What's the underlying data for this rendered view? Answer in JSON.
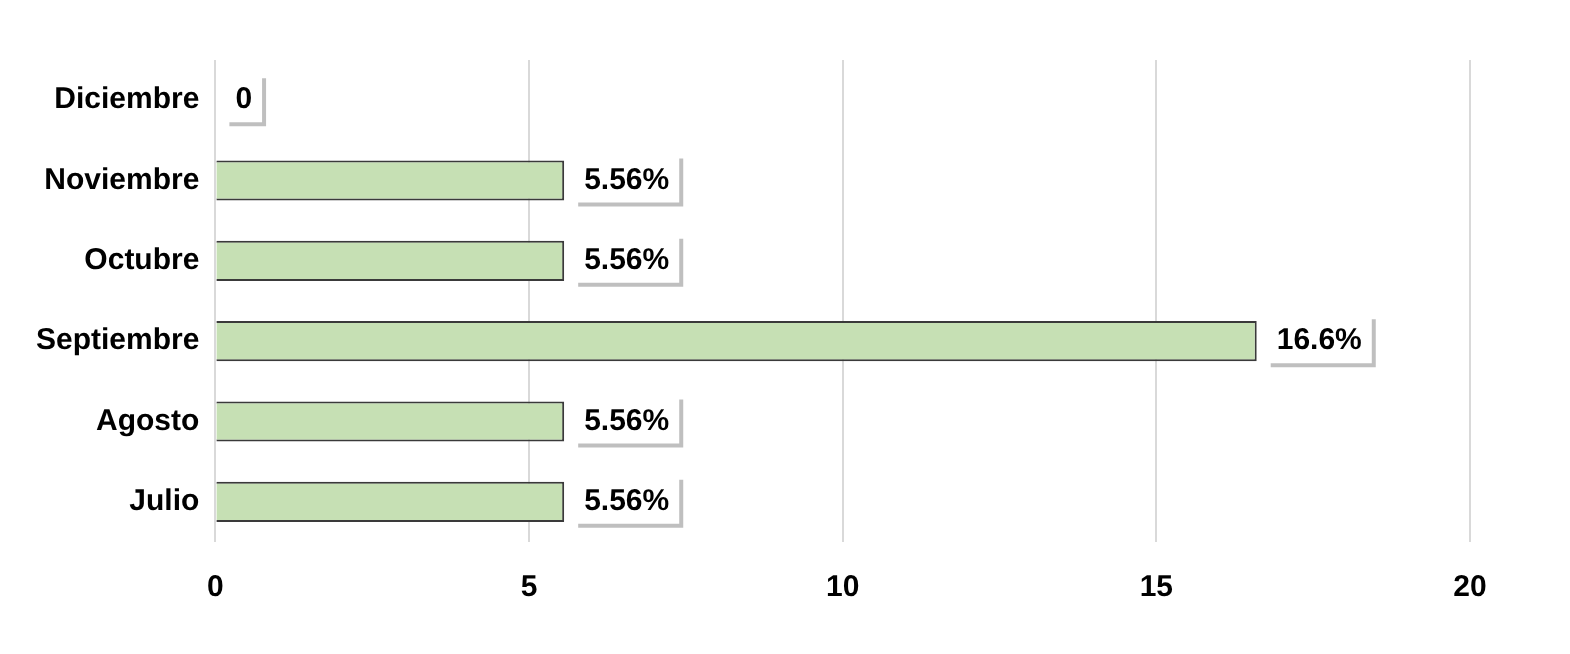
{
  "chart_data": {
    "type": "bar",
    "orientation": "horizontal",
    "categories": [
      "Diciembre",
      "Noviembre",
      "Octubre",
      "Septiembre",
      "Agosto",
      "Julio"
    ],
    "values": [
      0,
      5.56,
      5.56,
      16.6,
      5.56,
      5.56
    ],
    "value_labels": [
      "0",
      "5.56%",
      "5.56%",
      "16.6%",
      "5.56%",
      "5.56%"
    ],
    "color": "#c6e0b4",
    "xlim": [
      0,
      20
    ],
    "xticks": [
      0,
      5,
      10,
      15,
      20
    ],
    "grid": "x",
    "legend": false
  }
}
